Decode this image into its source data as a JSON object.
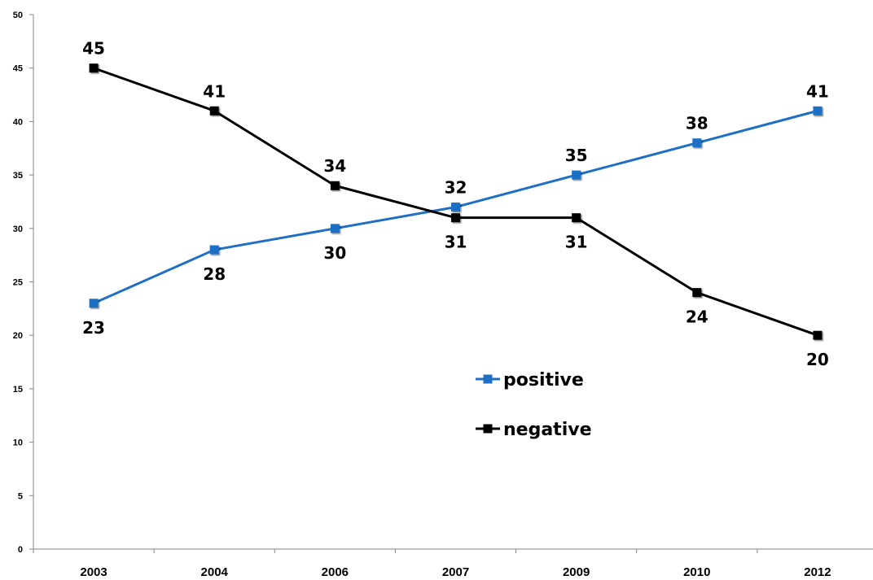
{
  "chart_data": {
    "type": "line",
    "title": "",
    "xlabel": "",
    "ylabel": "",
    "categories": [
      "2003",
      "2004",
      "2006",
      "2007",
      "2009",
      "2010",
      "2012"
    ],
    "ylim": [
      0,
      50
    ],
    "yticks": [
      0,
      5,
      10,
      15,
      20,
      25,
      30,
      35,
      40,
      45,
      50
    ],
    "grid": false,
    "legend": "inside-center-right",
    "series": [
      {
        "name": "positive",
        "color": "#1f6fc4",
        "values": [
          23,
          28,
          30,
          32,
          35,
          38,
          41
        ]
      },
      {
        "name": "negative",
        "color": "#000000",
        "values": [
          45,
          41,
          34,
          31,
          31,
          24,
          20
        ]
      }
    ]
  }
}
